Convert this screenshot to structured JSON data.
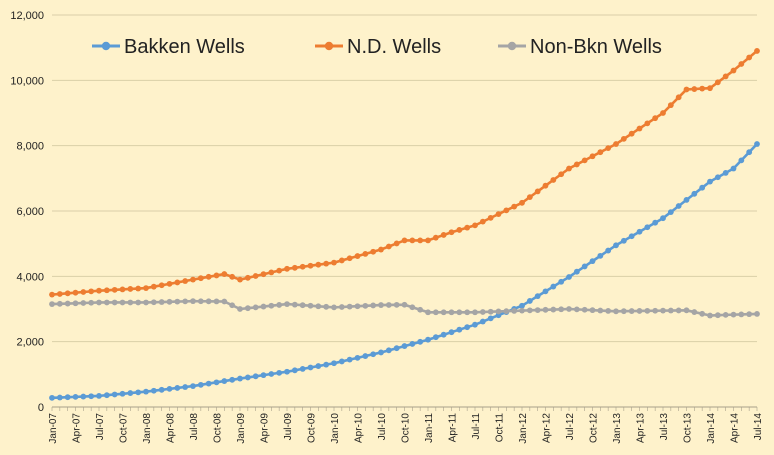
{
  "chart_data": {
    "type": "line",
    "title": "",
    "xlabel": "",
    "ylabel": "",
    "ylim": [
      0,
      12000
    ],
    "y_ticks": [
      0,
      2000,
      4000,
      6000,
      8000,
      10000,
      12000
    ],
    "y_tick_labels": [
      "0",
      "2,000",
      "4,000",
      "6,000",
      "8,000",
      "10,000",
      "12,000"
    ],
    "x_tick_labels": [
      "Jan-07",
      "Apr-07",
      "Jul-07",
      "Oct-07",
      "Jan-08",
      "Apr-08",
      "Jul-08",
      "Oct-08",
      "Jan-09",
      "Apr-09",
      "Jul-09",
      "Oct-09",
      "Jan-10",
      "Apr-10",
      "Jul-10",
      "Oct-10",
      "Jan-11",
      "Apr-11",
      "Jul-11",
      "Oct-11",
      "Jan-12",
      "Apr-12",
      "Jul-12",
      "Oct-12",
      "Jan-13",
      "Apr-13",
      "Jul-13",
      "Oct-13",
      "Jan-14",
      "Apr-14",
      "Jul-14"
    ],
    "x_tick_months": [
      0,
      3,
      6,
      9,
      12,
      15,
      18,
      21,
      24,
      27,
      30,
      33,
      36,
      39,
      42,
      45,
      48,
      51,
      54,
      57,
      60,
      63,
      66,
      69,
      72,
      75,
      78,
      81,
      84,
      87,
      90
    ],
    "x_months_start": "Jan-07",
    "x_months_end": "Jul-14",
    "grid": "horizontal",
    "legend_position": "top",
    "series": [
      {
        "name": "Bakken Wells",
        "color": "#5b9bd5",
        "keypoints": [
          [
            0,
            280
          ],
          [
            6,
            340
          ],
          [
            12,
            470
          ],
          [
            18,
            640
          ],
          [
            24,
            870
          ],
          [
            30,
            1080
          ],
          [
            36,
            1340
          ],
          [
            42,
            1670
          ],
          [
            48,
            2060
          ],
          [
            54,
            2520
          ],
          [
            60,
            3100
          ],
          [
            66,
            3980
          ],
          [
            72,
            4950
          ],
          [
            78,
            5780
          ],
          [
            84,
            6900
          ],
          [
            87,
            7300
          ],
          [
            90,
            8050
          ]
        ]
      },
      {
        "name": "N.D. Wells",
        "color": "#ed7d31",
        "keypoints": [
          [
            0,
            3440
          ],
          [
            6,
            3560
          ],
          [
            12,
            3640
          ],
          [
            18,
            3900
          ],
          [
            22,
            4070
          ],
          [
            24,
            3900
          ],
          [
            30,
            4230
          ],
          [
            36,
            4420
          ],
          [
            42,
            4820
          ],
          [
            45,
            5100
          ],
          [
            48,
            5100
          ],
          [
            51,
            5350
          ],
          [
            54,
            5560
          ],
          [
            60,
            6250
          ],
          [
            66,
            7300
          ],
          [
            72,
            8050
          ],
          [
            78,
            9000
          ],
          [
            81,
            9720
          ],
          [
            84,
            9760
          ],
          [
            87,
            10300
          ],
          [
            90,
            10900
          ]
        ]
      },
      {
        "name": "Non-Bkn Wells",
        "color": "#a5a5a5",
        "keypoints": [
          [
            0,
            3150
          ],
          [
            6,
            3200
          ],
          [
            12,
            3200
          ],
          [
            18,
            3240
          ],
          [
            22,
            3230
          ],
          [
            24,
            3000
          ],
          [
            30,
            3150
          ],
          [
            36,
            3050
          ],
          [
            42,
            3120
          ],
          [
            45,
            3130
          ],
          [
            48,
            2900
          ],
          [
            54,
            2900
          ],
          [
            60,
            2950
          ],
          [
            66,
            3000
          ],
          [
            72,
            2930
          ],
          [
            78,
            2950
          ],
          [
            81,
            2960
          ],
          [
            84,
            2800
          ],
          [
            86,
            2820
          ],
          [
            90,
            2850
          ]
        ]
      }
    ]
  }
}
